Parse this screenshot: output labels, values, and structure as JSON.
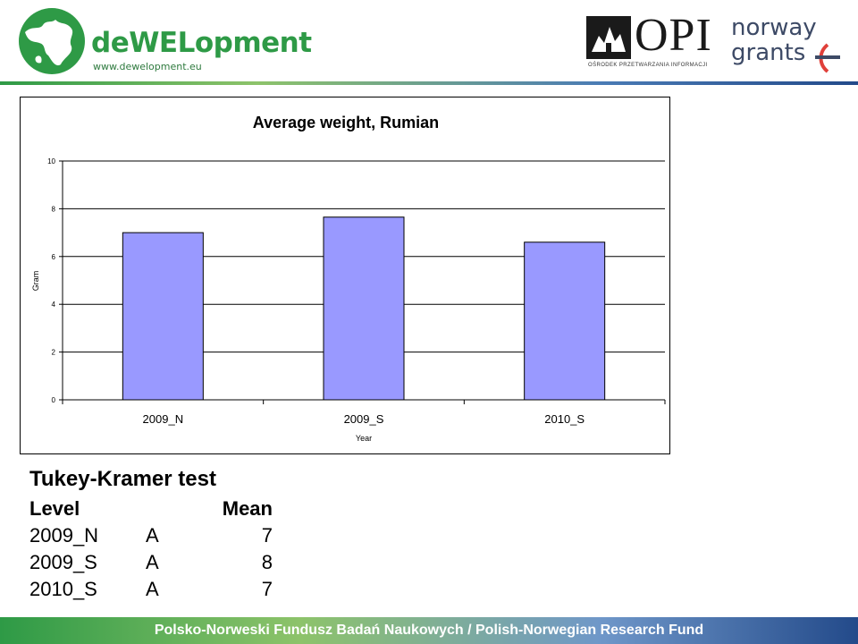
{
  "header": {
    "logo_name": "deWELopment",
    "logo_url": "www.dewelopment.eu",
    "opi_name": "OPI",
    "opi_subtitle": "OŚRODEK PRZETWARZANIA INFORMACJI",
    "norway_line1": "norway",
    "norway_line2": "grants"
  },
  "colors": {
    "bar_fill": "#9999ff",
    "brand_green": "#2e9a46",
    "brand_blue": "#234a8a"
  },
  "chart_data": {
    "type": "bar",
    "title": "Average weight, Rumian",
    "xlabel": "Year",
    "ylabel": "Gram",
    "categories": [
      "2009_N",
      "2009_S",
      "2010_S"
    ],
    "values": [
      7.0,
      7.65,
      6.6
    ],
    "ylim": [
      0,
      10
    ],
    "yticks": [
      "0",
      "2",
      "4",
      "6",
      "8",
      "10"
    ],
    "grid": true,
    "legend": "none"
  },
  "tukey": {
    "title": "Tukey-Kramer test",
    "headers": {
      "level": "Level",
      "mean": "Mean"
    },
    "rows": [
      {
        "level": "2009_N",
        "group": "A",
        "mean": "7"
      },
      {
        "level": "2009_S",
        "group": "A",
        "mean": "8"
      },
      {
        "level": "2010_S",
        "group": "A",
        "mean": "7"
      }
    ]
  },
  "footer": {
    "text": "Polsko-Norweski Fundusz Badań Naukowych / Polish-Norwegian Research Fund"
  }
}
